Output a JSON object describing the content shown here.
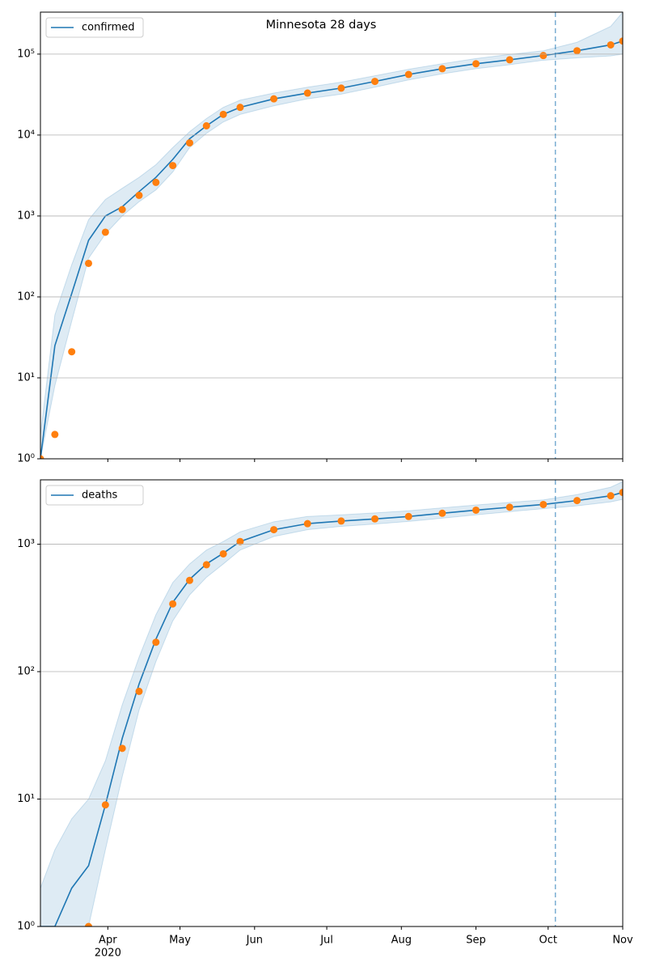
{
  "chart_data": [
    {
      "type": "line",
      "title": "Minnesota 28 days",
      "log_y": true,
      "grid": true,
      "legend": "upper left",
      "xlim": [
        "2020-03-04",
        "2020-11-01"
      ],
      "ylim": [
        1,
        330000
      ],
      "yticks": [
        {
          "value": 1,
          "label": "10⁰"
        },
        {
          "value": 10,
          "label": "10¹"
        },
        {
          "value": 100,
          "label": "10²"
        },
        {
          "value": 1000,
          "label": "10³"
        },
        {
          "value": 10000,
          "label": "10⁴"
        },
        {
          "value": 100000,
          "label": "10⁵"
        }
      ],
      "vline": "2020-10-04",
      "vline_color": "#1f77b4",
      "x": [
        "2020-03-04",
        "2020-03-10",
        "2020-03-17",
        "2020-03-24",
        "2020-03-31",
        "2020-04-07",
        "2020-04-14",
        "2020-04-21",
        "2020-04-28",
        "2020-05-05",
        "2020-05-12",
        "2020-05-19",
        "2020-05-26",
        "2020-06-09",
        "2020-06-23",
        "2020-07-07",
        "2020-07-21",
        "2020-08-04",
        "2020-08-18",
        "2020-09-01",
        "2020-09-15",
        "2020-09-29",
        "2020-10-13",
        "2020-10-27",
        "2020-11-01"
      ],
      "band": {
        "color": "#1f77b4",
        "upper": [
          2,
          60,
          250,
          900,
          1600,
          2200,
          3000,
          4300,
          7000,
          11000,
          16000,
          22000,
          27000,
          33000,
          39000,
          45000,
          54000,
          65000,
          76000,
          88000,
          99000,
          110000,
          140000,
          220000,
          330000
        ],
        "lower": [
          1,
          8,
          50,
          300,
          600,
          1000,
          1500,
          2100,
          3500,
          7000,
          10500,
          14500,
          18000,
          23000,
          28000,
          32000,
          39000,
          48000,
          57000,
          66000,
          74000,
          84000,
          90000,
          95000,
          100000
        ]
      },
      "series": [
        {
          "name": "confirmed",
          "color": "#1f77b4",
          "values": [
            1,
            25,
            110,
            500,
            1000,
            1300,
            2000,
            3000,
            5000,
            9000,
            13000,
            18000,
            22000,
            28000,
            33000,
            38000,
            46000,
            56000,
            66000,
            76000,
            85000,
            96000,
            110000,
            130000,
            145000
          ]
        },
        {
          "color": "#ff7f0e",
          "marker": "circle",
          "values": [
            1,
            2,
            21,
            260,
            630,
            1200,
            1800,
            2600,
            4200,
            8000,
            13000,
            18000,
            22000,
            28000,
            33000,
            38000,
            46000,
            56000,
            66000,
            76000,
            85000,
            96000,
            110000,
            130000,
            145000
          ]
        }
      ]
    },
    {
      "type": "line",
      "log_y": true,
      "grid": true,
      "legend": "upper left",
      "xlim": [
        "2020-03-04",
        "2020-11-01"
      ],
      "ylim": [
        1,
        3200
      ],
      "yticks": [
        {
          "value": 1,
          "label": "10⁰"
        },
        {
          "value": 10,
          "label": "10¹"
        },
        {
          "value": 100,
          "label": "10²"
        },
        {
          "value": 1000,
          "label": "10³"
        }
      ],
      "xticks": [
        {
          "value": "2020-04-01",
          "label": "Apr"
        },
        {
          "value": "2020-05-01",
          "label": "May"
        },
        {
          "value": "2020-06-01",
          "label": "Jun"
        },
        {
          "value": "2020-07-01",
          "label": "Jul"
        },
        {
          "value": "2020-08-01",
          "label": "Aug"
        },
        {
          "value": "2020-09-01",
          "label": "Sep"
        },
        {
          "value": "2020-10-01",
          "label": "Oct"
        },
        {
          "value": "2020-11-01",
          "label": "Nov"
        }
      ],
      "year_label": "2020",
      "vline": "2020-10-04",
      "vline_color": "#1f77b4",
      "x": [
        "2020-03-04",
        "2020-03-10",
        "2020-03-17",
        "2020-03-24",
        "2020-03-31",
        "2020-04-07",
        "2020-04-14",
        "2020-04-21",
        "2020-04-28",
        "2020-05-05",
        "2020-05-12",
        "2020-05-19",
        "2020-05-26",
        "2020-06-09",
        "2020-06-23",
        "2020-07-07",
        "2020-07-21",
        "2020-08-04",
        "2020-08-18",
        "2020-09-01",
        "2020-09-15",
        "2020-09-29",
        "2020-10-13",
        "2020-10-27",
        "2020-11-01"
      ],
      "band": {
        "color": "#1f77b4",
        "upper": [
          2,
          4,
          7,
          10,
          20,
          55,
          130,
          280,
          500,
          700,
          900,
          1050,
          1250,
          1500,
          1650,
          1700,
          1760,
          1830,
          1930,
          2030,
          2130,
          2230,
          2450,
          2800,
          3100
        ],
        "lower": [
          1,
          1,
          1,
          1,
          4,
          15,
          50,
          120,
          250,
          400,
          550,
          700,
          900,
          1150,
          1300,
          1380,
          1440,
          1510,
          1600,
          1700,
          1800,
          1900,
          2000,
          2150,
          2250
        ]
      },
      "series": [
        {
          "name": "deaths",
          "color": "#1f77b4",
          "values": [
            1,
            1,
            2,
            3,
            9,
            30,
            80,
            180,
            350,
            530,
            700,
            850,
            1050,
            1300,
            1450,
            1520,
            1580,
            1650,
            1750,
            1850,
            1950,
            2050,
            2200,
            2400,
            2550
          ]
        },
        {
          "color": "#ff7f0e",
          "marker": "circle",
          "values": [
            null,
            null,
            null,
            1,
            9,
            25,
            70,
            170,
            340,
            520,
            690,
            840,
            1050,
            1300,
            1450,
            1520,
            1580,
            1650,
            1750,
            1850,
            1950,
            2050,
            2200,
            2400,
            2550
          ]
        }
      ]
    }
  ]
}
